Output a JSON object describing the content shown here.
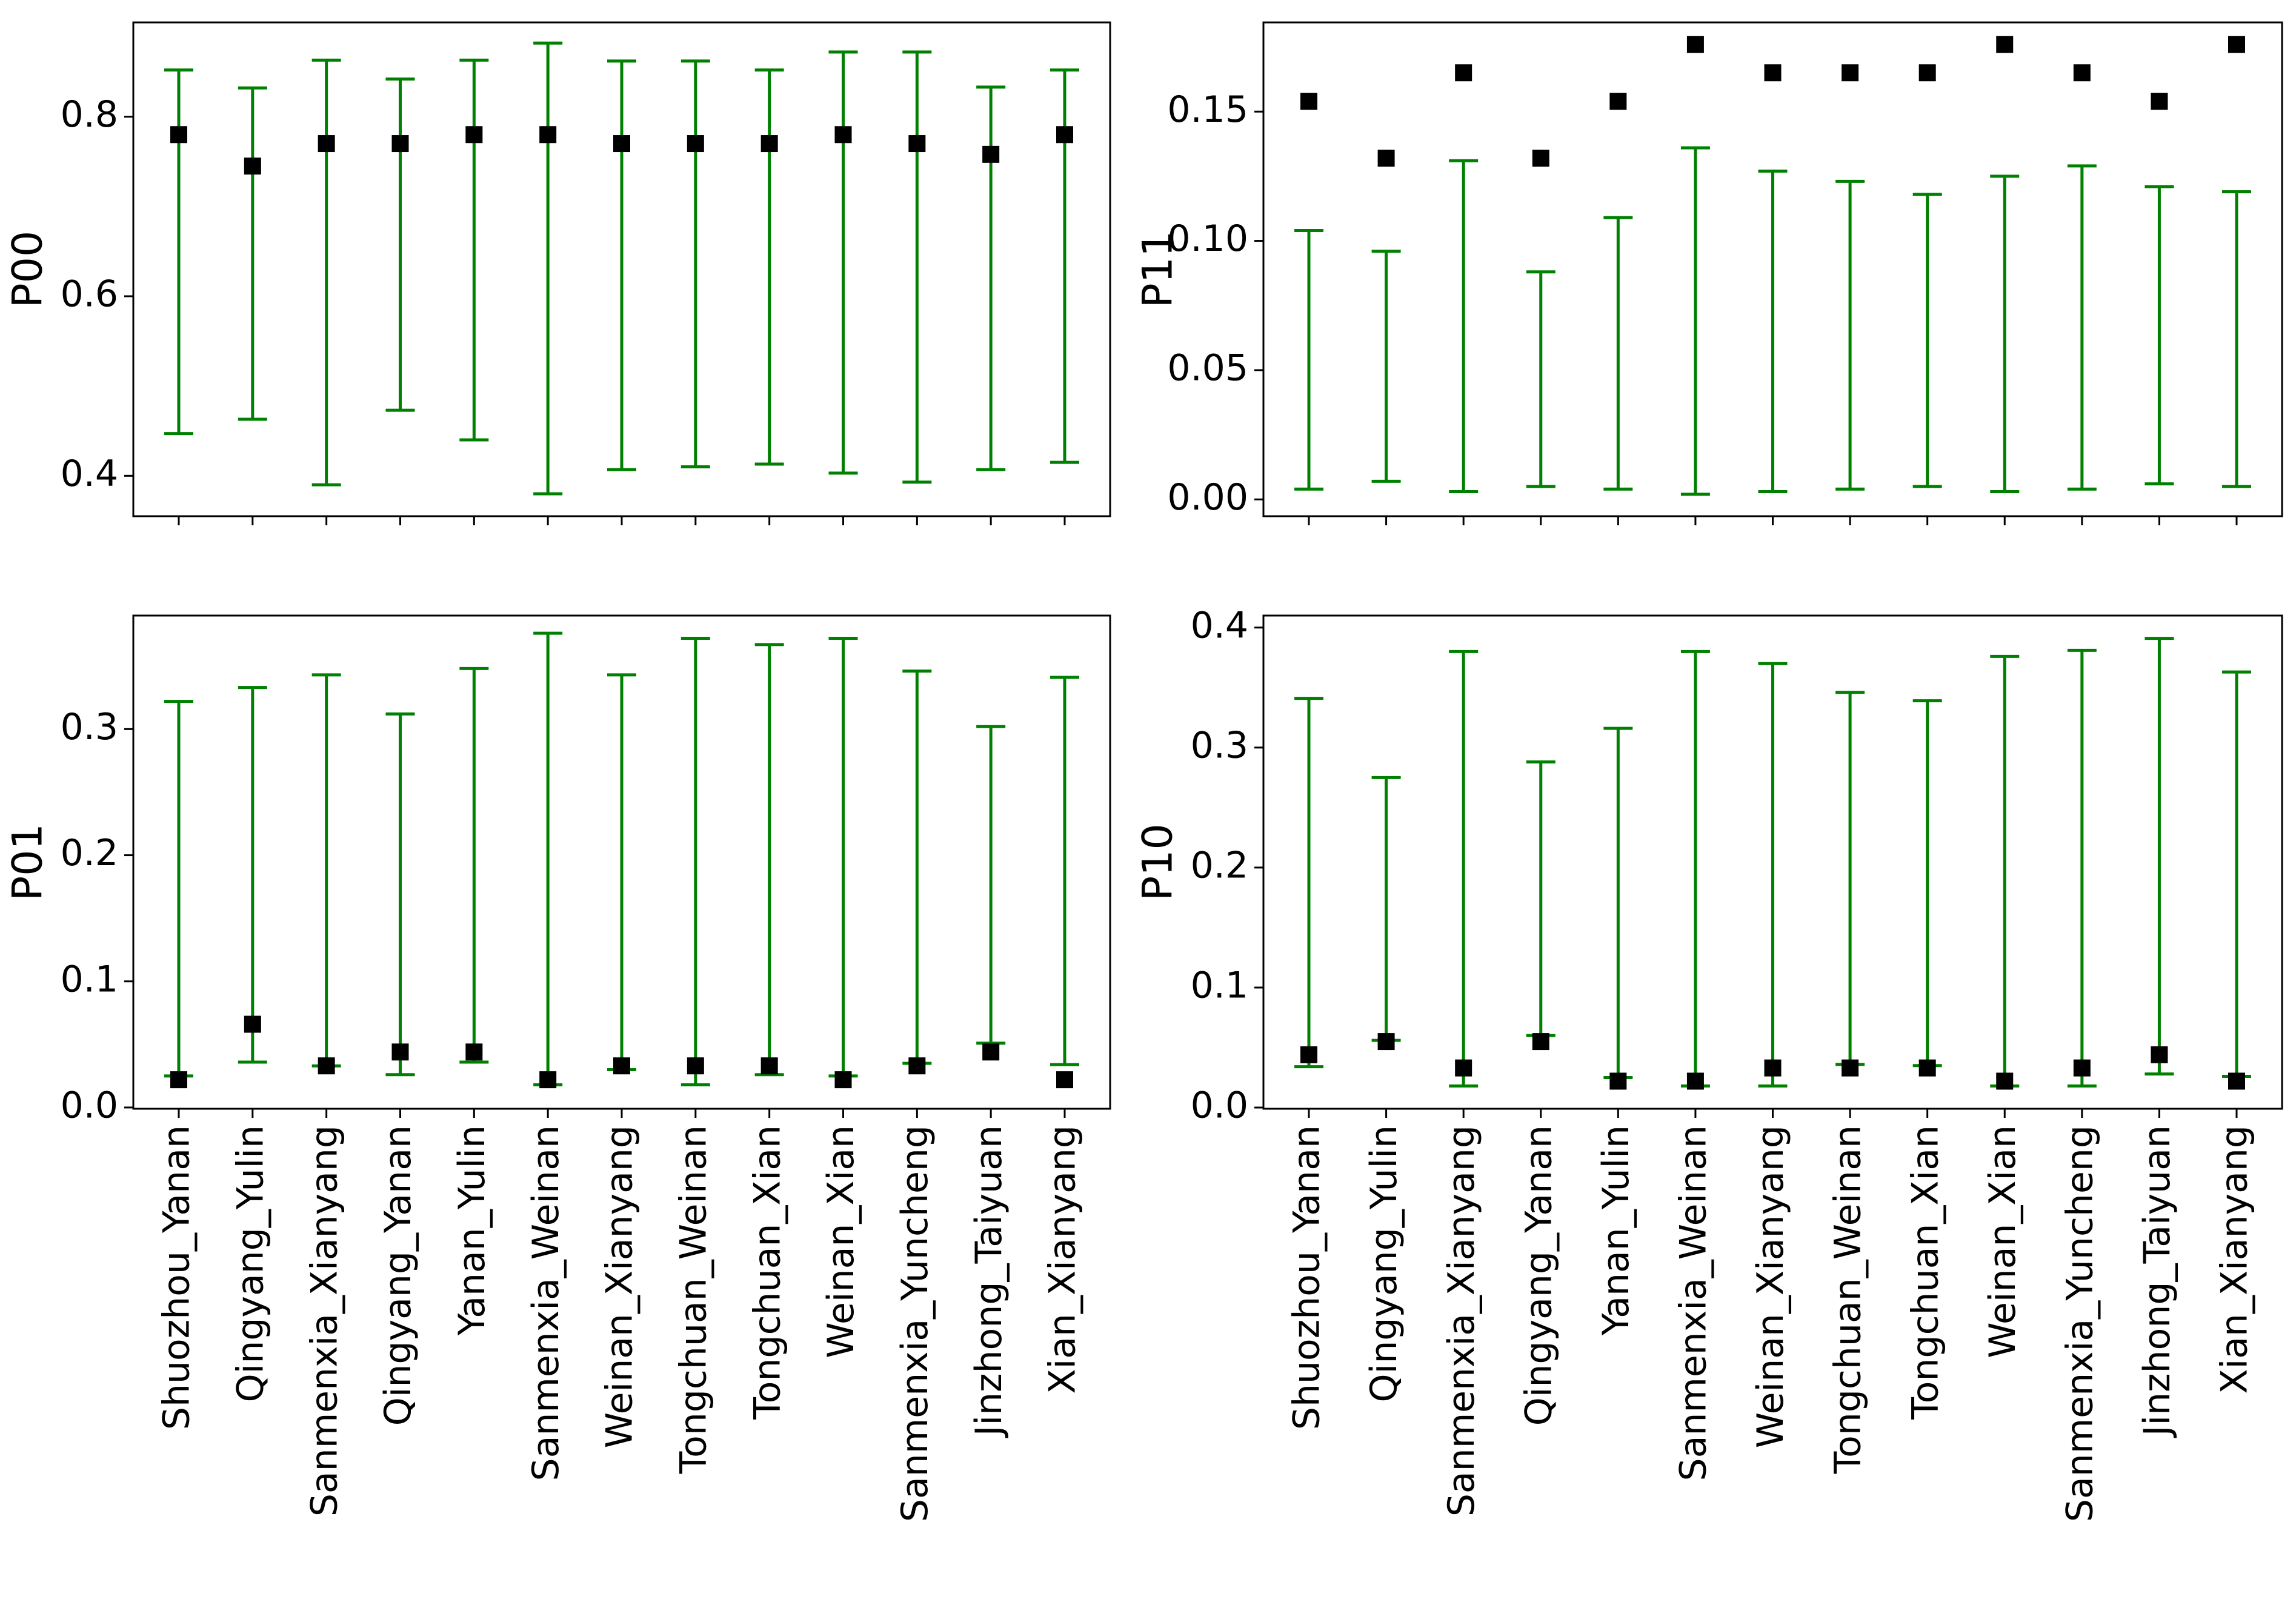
{
  "colors": {
    "errorbar": "#008000",
    "marker": "#000000",
    "axes": "#000000",
    "background": "#ffffff"
  },
  "chart_data": [
    {
      "id": "P00",
      "type": "errorbar",
      "title": "",
      "xlabel": "",
      "ylabel": "P00",
      "ylim": [
        0.355,
        0.905
      ],
      "yticks": [
        0.4,
        0.6,
        0.8
      ],
      "ytick_labels": [
        "0.4",
        "0.6",
        "0.8"
      ],
      "show_xtick_labels": false,
      "categories": [
        "Shuozhou_Yanan",
        "Qingyang_Yulin",
        "Sanmenxia_Xianyang",
        "Qingyang_Yanan",
        "Yanan_Yulin",
        "Sanmenxia_Weinan",
        "Weinan_Xianyang",
        "Tongchuan_Weinan",
        "Tongchuan_Xian",
        "Weinan_Xian",
        "Sanmenxia_Yuncheng",
        "Jinzhong_Taiyuan",
        "Xian_Xianyang"
      ],
      "values": [
        0.78,
        0.745,
        0.77,
        0.77,
        0.78,
        0.78,
        0.77,
        0.77,
        0.77,
        0.78,
        0.77,
        0.758,
        0.78
      ],
      "lower": [
        0.447,
        0.463,
        0.39,
        0.473,
        0.44,
        0.38,
        0.407,
        0.41,
        0.413,
        0.403,
        0.393,
        0.407,
        0.415
      ],
      "upper": [
        0.852,
        0.832,
        0.863,
        0.842,
        0.863,
        0.882,
        0.862,
        0.862,
        0.852,
        0.872,
        0.872,
        0.833,
        0.852
      ]
    },
    {
      "id": "P11",
      "type": "errorbar",
      "title": "",
      "xlabel": "",
      "ylabel": "P11",
      "ylim": [
        -0.0065,
        0.1845
      ],
      "yticks": [
        0.0,
        0.05,
        0.1,
        0.15
      ],
      "ytick_labels": [
        "0.00",
        "0.05",
        "0.10",
        "0.15"
      ],
      "show_xtick_labels": false,
      "categories": [
        "Shuozhou_Yanan",
        "Qingyang_Yulin",
        "Sanmenxia_Xianyang",
        "Qingyang_Yanan",
        "Yanan_Yulin",
        "Sanmenxia_Weinan",
        "Weinan_Xianyang",
        "Tongchuan_Weinan",
        "Tongchuan_Xian",
        "Weinan_Xian",
        "Sanmenxia_Yuncheng",
        "Jinzhong_Taiyuan",
        "Xian_Xianyang"
      ],
      "values": [
        0.154,
        0.132,
        0.165,
        0.132,
        0.154,
        0.176,
        0.165,
        0.165,
        0.165,
        0.176,
        0.165,
        0.154,
        0.176
      ],
      "lower": [
        0.004,
        0.007,
        0.003,
        0.005,
        0.004,
        0.002,
        0.003,
        0.004,
        0.005,
        0.003,
        0.004,
        0.006,
        0.005
      ],
      "upper": [
        0.104,
        0.096,
        0.131,
        0.088,
        0.109,
        0.136,
        0.127,
        0.123,
        0.118,
        0.125,
        0.129,
        0.121,
        0.119
      ]
    },
    {
      "id": "P01",
      "type": "errorbar",
      "title": "",
      "xlabel": "",
      "ylabel": "P01",
      "ylim": [
        -0.001,
        0.39
      ],
      "yticks": [
        0.0,
        0.1,
        0.2,
        0.3
      ],
      "ytick_labels": [
        "0.0",
        "0.1",
        "0.2",
        "0.3"
      ],
      "show_xtick_labels": true,
      "categories": [
        "Shuozhou_Yanan",
        "Qingyang_Yulin",
        "Sanmenxia_Xianyang",
        "Qingyang_Yanan",
        "Yanan_Yulin",
        "Sanmenxia_Weinan",
        "Weinan_Xianyang",
        "Tongchuan_Weinan",
        "Tongchuan_Xian",
        "Weinan_Xian",
        "Sanmenxia_Yuncheng",
        "Jinzhong_Taiyuan",
        "Xian_Xianyang"
      ],
      "values": [
        0.022,
        0.066,
        0.033,
        0.044,
        0.044,
        0.022,
        0.033,
        0.033,
        0.033,
        0.022,
        0.033,
        0.044,
        0.022
      ],
      "lower": [
        0.025,
        0.036,
        0.033,
        0.026,
        0.036,
        0.018,
        0.03,
        0.018,
        0.026,
        0.025,
        0.035,
        0.051,
        0.034
      ],
      "upper": [
        0.322,
        0.333,
        0.343,
        0.312,
        0.348,
        0.376,
        0.343,
        0.372,
        0.367,
        0.372,
        0.346,
        0.302,
        0.341
      ]
    },
    {
      "id": "P10",
      "type": "errorbar",
      "title": "",
      "xlabel": "",
      "ylabel": "P10",
      "ylim": [
        -0.001,
        0.41
      ],
      "yticks": [
        0.0,
        0.1,
        0.2,
        0.3,
        0.4
      ],
      "ytick_labels": [
        "0.0",
        "0.1",
        "0.2",
        "0.3",
        "0.4"
      ],
      "show_xtick_labels": true,
      "categories": [
        "Shuozhou_Yanan",
        "Qingyang_Yulin",
        "Sanmenxia_Xianyang",
        "Qingyang_Yanan",
        "Yanan_Yulin",
        "Sanmenxia_Weinan",
        "Weinan_Xianyang",
        "Tongchuan_Weinan",
        "Tongchuan_Xian",
        "Weinan_Xian",
        "Sanmenxia_Yuncheng",
        "Jinzhong_Taiyuan",
        "Xian_Xianyang"
      ],
      "values": [
        0.044,
        0.055,
        0.033,
        0.055,
        0.022,
        0.022,
        0.033,
        0.033,
        0.033,
        0.022,
        0.033,
        0.044,
        0.022
      ],
      "lower": [
        0.034,
        0.056,
        0.018,
        0.06,
        0.025,
        0.018,
        0.018,
        0.036,
        0.035,
        0.018,
        0.018,
        0.028,
        0.026
      ],
      "upper": [
        0.341,
        0.275,
        0.38,
        0.288,
        0.316,
        0.38,
        0.37,
        0.346,
        0.339,
        0.376,
        0.381,
        0.391,
        0.363
      ]
    }
  ]
}
